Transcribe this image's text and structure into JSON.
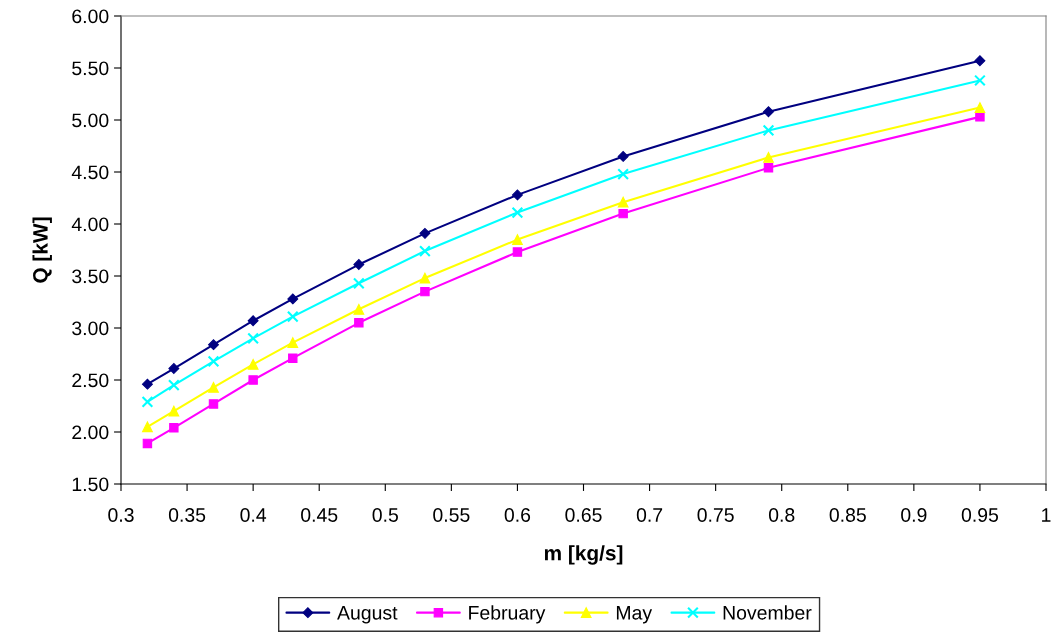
{
  "chart_data": {
    "type": "line",
    "xlabel": "m [kg/s]",
    "ylabel": "Q [kW]",
    "x": [
      0.32,
      0.34,
      0.37,
      0.4,
      0.43,
      0.48,
      0.53,
      0.6,
      0.68,
      0.79,
      0.95
    ],
    "series": [
      {
        "name": "August",
        "color": "#000080",
        "marker": "diamond",
        "values": [
          2.46,
          2.61,
          2.84,
          3.07,
          3.28,
          3.61,
          3.91,
          4.28,
          4.65,
          5.08,
          5.57
        ]
      },
      {
        "name": "February",
        "color": "#ff00ff",
        "marker": "square",
        "values": [
          1.89,
          2.04,
          2.27,
          2.5,
          2.71,
          3.05,
          3.35,
          3.73,
          4.1,
          4.54,
          5.03
        ]
      },
      {
        "name": "May",
        "color": "#ffff00",
        "marker": "triangle",
        "values": [
          2.05,
          2.2,
          2.43,
          2.65,
          2.86,
          3.18,
          3.48,
          3.85,
          4.21,
          4.64,
          5.12
        ]
      },
      {
        "name": "November",
        "color": "#00ffff",
        "marker": "cross",
        "values": [
          2.29,
          2.45,
          2.68,
          2.9,
          3.11,
          3.43,
          3.74,
          4.11,
          4.48,
          4.9,
          5.38
        ]
      }
    ],
    "xlim": [
      0.3,
      1
    ],
    "xticks": [
      0.3,
      0.35,
      0.4,
      0.45,
      0.5,
      0.55,
      0.6,
      0.65,
      0.7,
      0.75,
      0.8,
      0.85,
      0.9,
      0.95,
      1
    ],
    "ylim": [
      1.5,
      6
    ],
    "yticks": [
      {
        "value": 1.5,
        "label": "1.50"
      },
      {
        "value": 2,
        "label": "2.00"
      },
      {
        "value": 2.5,
        "label": "2.50"
      },
      {
        "value": 3,
        "label": "3.00"
      },
      {
        "value": 3.5,
        "label": "3.50"
      },
      {
        "value": 4,
        "label": "4.00"
      },
      {
        "value": 4.5,
        "label": "4.50"
      },
      {
        "value": 5,
        "label": "5.00"
      },
      {
        "value": 5.5,
        "label": "5.50"
      },
      {
        "value": 6,
        "label": "6.00"
      }
    ],
    "grid": false,
    "legend": "bottom",
    "line_style": "solid"
  }
}
